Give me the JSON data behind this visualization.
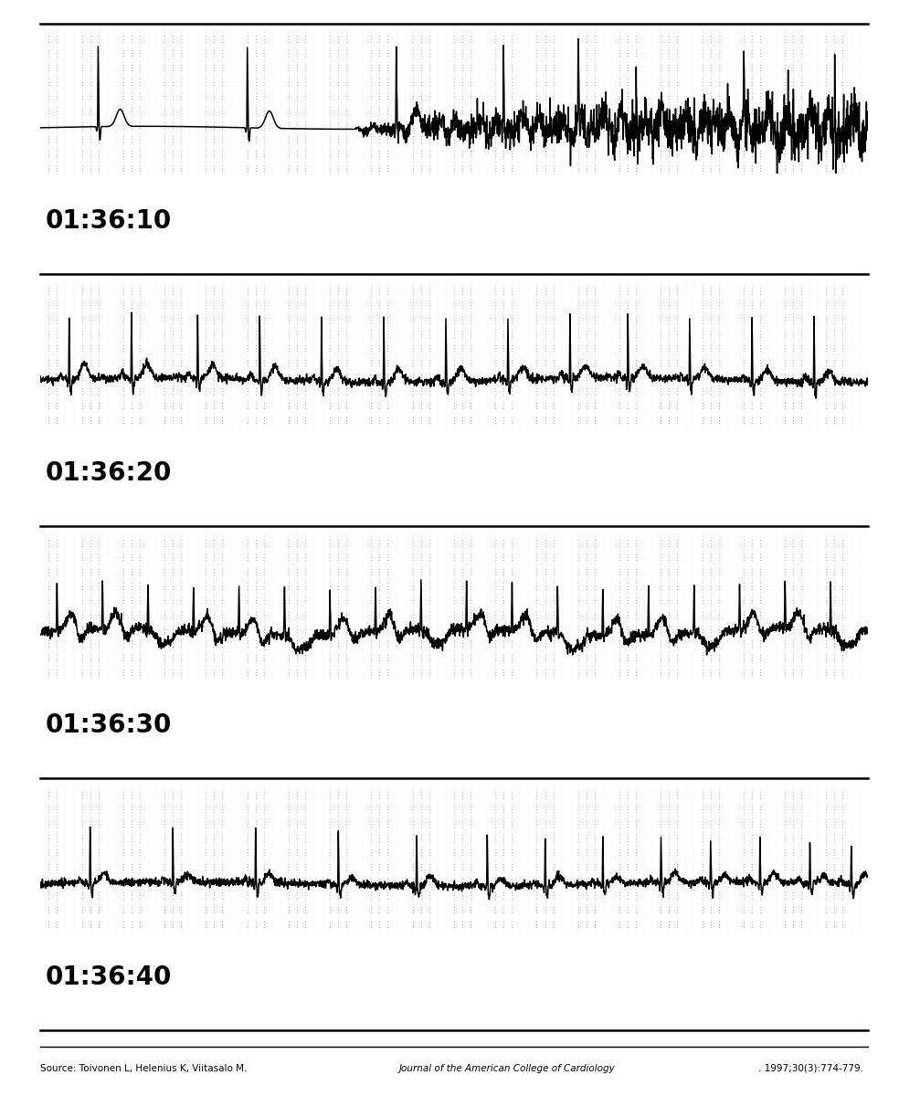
{
  "source_normal1": "Source: Toivonen L, Helenius K, Viitasalo M. ",
  "source_italic": "Journal of the American College of Cardiology",
  "source_normal2": ". 1997;30(3):774-779.",
  "timestamps": [
    "01:36:10",
    "01:36:20",
    "01:36:30",
    "01:36:40"
  ],
  "bg_color": "#ffffff",
  "ecg_color": "#000000",
  "grid_major_color": "#aaaaaa",
  "grid_minor_color": "#cccccc",
  "border_color": "#000000",
  "ecg_linewidth": 1.1,
  "timestamp_fontsize": 20,
  "source_fontsize": 7.5
}
